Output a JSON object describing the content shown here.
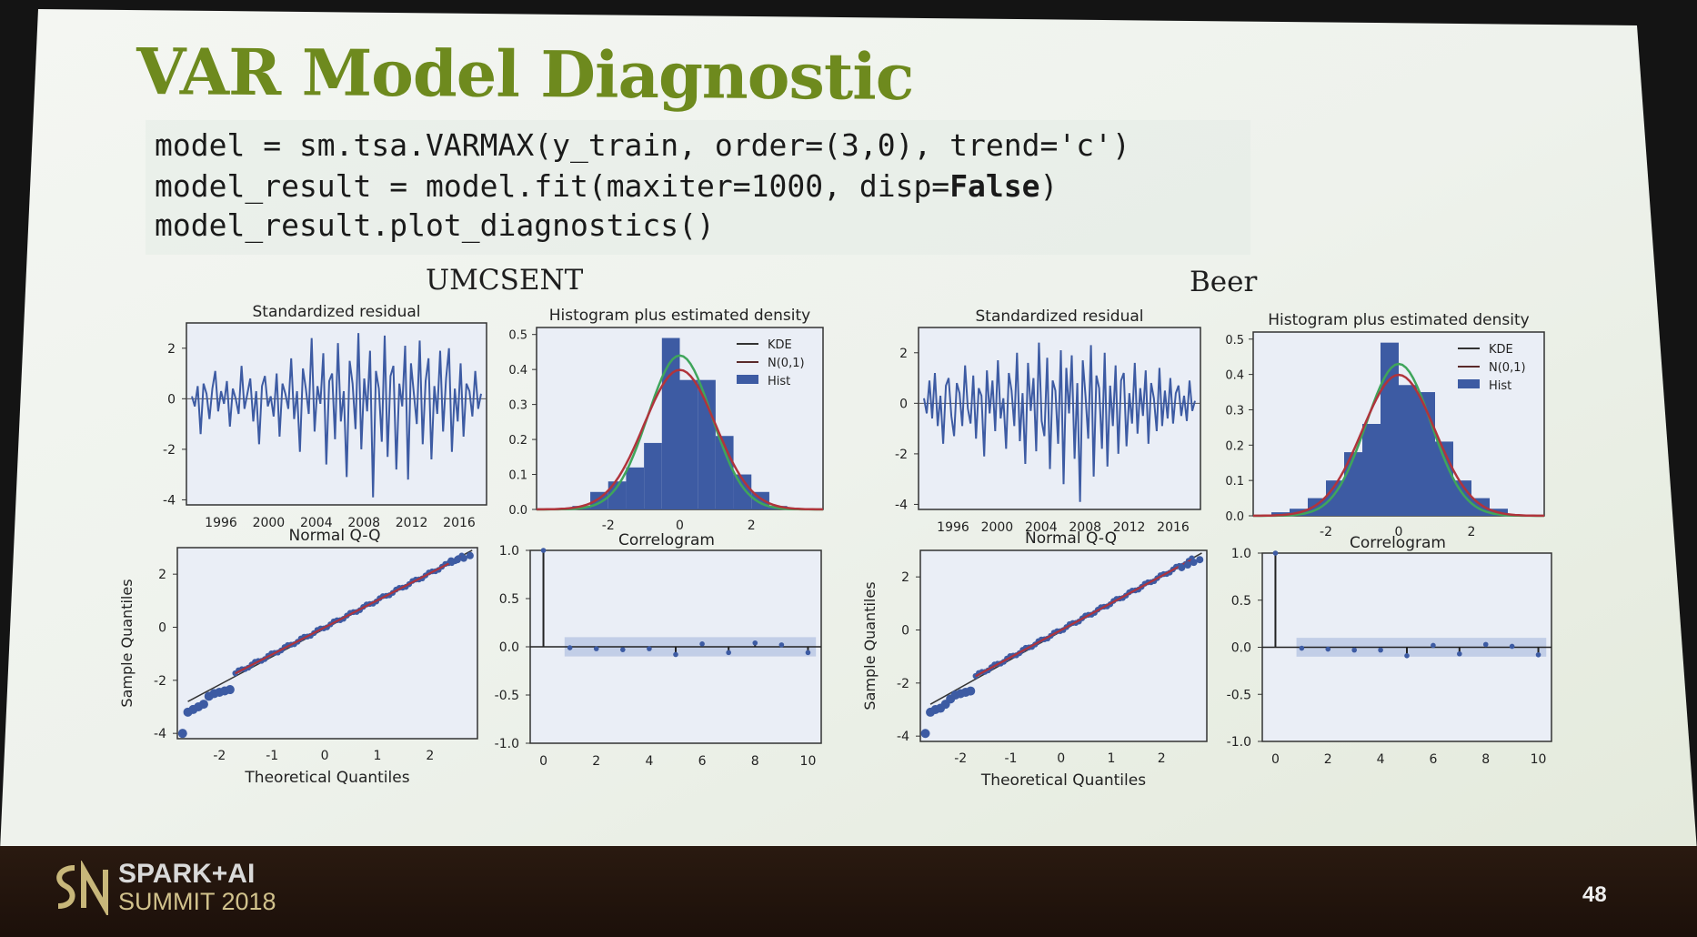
{
  "slide": {
    "title": "VAR Model Diagnostic",
    "code": {
      "line1": "model = sm.tsa.VARMAX(y_train, order=(3,0), trend='c')",
      "line2_prefix": "model_result = model.fit(maxiter=1000, disp=",
      "line2_bold": "False",
      "line2_suffix": ")",
      "line3": "model_result.plot_diagnostics()"
    },
    "page_number": "48",
    "logo": {
      "line1": "SPARK+AI",
      "line2": "SUMMIT 2018"
    }
  },
  "colors": {
    "title": "#6e8a1e",
    "series_blue": "#3d5ba3",
    "kde_green": "#3fa55b",
    "normal_red": "#b0343c",
    "ci_band": "#b8c6e4"
  },
  "panels": [
    {
      "label": "UMCSENT"
    },
    {
      "label": "Beer"
    }
  ],
  "chart_data": [
    {
      "panel": "UMCSENT",
      "type": "line",
      "title": "Standardized residual",
      "x_ticks": [
        "1996",
        "2000",
        "2004",
        "2008",
        "2012",
        "2016"
      ],
      "y_ticks": [
        "2",
        "0",
        "-2",
        "-4"
      ],
      "ylim": [
        -4.2,
        3
      ],
      "values": [
        0.1,
        -0.3,
        0.5,
        -1.4,
        0.6,
        0.2,
        -0.8,
        0.4,
        1.1,
        -0.5,
        0.3,
        -0.2,
        0.7,
        -1.1,
        0.4,
        0.0,
        -0.6,
        1.3,
        -0.4,
        0.2,
        0.8,
        -0.9,
        0.3,
        -1.8,
        0.5,
        0.9,
        -0.3,
        0.1,
        -0.7,
        1.0,
        -1.5,
        0.6,
        0.2,
        -0.4,
        1.6,
        -0.8,
        0.3,
        -2.1,
        1.2,
        0.4,
        -0.6,
        2.4,
        -1.3,
        0.5,
        -0.2,
        1.8,
        -2.6,
        0.7,
        1.0,
        -1.6,
        2.2,
        -0.9,
        0.3,
        -3.1,
        1.5,
        0.6,
        -1.2,
        2.6,
        -2.0,
        0.8,
        -0.5,
        1.9,
        -3.9,
        1.1,
        0.4,
        -1.7,
        2.5,
        -2.3,
        0.9,
        1.3,
        -2.8,
        0.6,
        -0.3,
        2.1,
        -3.2,
        1.4,
        0.2,
        -1.0,
        2.3,
        -1.8,
        0.7,
        1.6,
        -2.4,
        0.5,
        -0.6,
        1.9,
        -1.3,
        0.8,
        2.0,
        -2.1,
        0.4,
        -0.9,
        1.4,
        -1.5,
        0.6,
        0.3,
        -0.7,
        1.1,
        -0.4,
        0.2
      ]
    },
    {
      "panel": "UMCSENT",
      "type": "bar",
      "title": "Histogram plus estimated density",
      "x_ticks": [
        "-2",
        "0",
        "2"
      ],
      "y_ticks": [
        "0.5",
        "0.4",
        "0.3",
        "0.2",
        "0.1",
        "0.0"
      ],
      "xlim": [
        -4,
        4
      ],
      "ylim": [
        0,
        0.52
      ],
      "hist": [
        {
          "x0": -3.0,
          "x1": -2.5,
          "y": 0.01
        },
        {
          "x0": -2.5,
          "x1": -2.0,
          "y": 0.05
        },
        {
          "x0": -2.0,
          "x1": -1.5,
          "y": 0.08
        },
        {
          "x0": -1.5,
          "x1": -1.0,
          "y": 0.12
        },
        {
          "x0": -1.0,
          "x1": -0.5,
          "y": 0.19
        },
        {
          "x0": -0.5,
          "x1": 0.0,
          "y": 0.49
        },
        {
          "x0": 0.0,
          "x1": 0.5,
          "y": 0.37
        },
        {
          "x0": 0.5,
          "x1": 1.0,
          "y": 0.37
        },
        {
          "x0": 1.0,
          "x1": 1.5,
          "y": 0.21
        },
        {
          "x0": 1.5,
          "x1": 2.0,
          "y": 0.1
        },
        {
          "x0": 2.0,
          "x1": 2.5,
          "y": 0.05
        },
        {
          "x0": 2.5,
          "x1": 3.0,
          "y": 0.01
        }
      ],
      "kde_peak": 0.44,
      "legend": [
        "KDE",
        "N(0,1)",
        "Hist"
      ],
      "legend_position": "top-right"
    },
    {
      "panel": "UMCSENT",
      "type": "scatter",
      "title": "Normal Q-Q",
      "xlabel": "Theoretical Quantiles",
      "ylabel": "Sample Quantiles",
      "x_ticks": [
        "-2",
        "-1",
        "0",
        "1",
        "2"
      ],
      "y_ticks": [
        "2",
        "0",
        "-2",
        "-4"
      ],
      "xlim": [
        -2.8,
        2.9
      ],
      "ylim": [
        -4.2,
        3.0
      ],
      "low_tail_y": [
        -4.0,
        -3.2,
        -3.1,
        -3.0,
        -2.9,
        -2.6,
        -2.5,
        -2.45,
        -2.4,
        -2.35
      ],
      "high_tail_y": [
        2.5,
        2.55,
        2.6,
        2.7
      ]
    },
    {
      "panel": "UMCSENT",
      "type": "bar",
      "title": "Correlogram",
      "x_ticks": [
        "0",
        "2",
        "4",
        "6",
        "8",
        "10"
      ],
      "y_ticks": [
        "1.0",
        "0.5",
        "0.0",
        "-0.5",
        "-1.0"
      ],
      "xlim": [
        -0.5,
        10.5
      ],
      "ylim": [
        -1,
        1
      ],
      "values": [
        1.0,
        -0.01,
        -0.02,
        -0.03,
        -0.02,
        -0.08,
        0.03,
        -0.06,
        0.04,
        0.02,
        -0.06
      ],
      "ci": 0.1
    },
    {
      "panel": "Beer",
      "type": "line",
      "title": "Standardized residual",
      "x_ticks": [
        "1996",
        "2000",
        "2004",
        "2008",
        "2012",
        "2016"
      ],
      "y_ticks": [
        "2",
        "0",
        "-2",
        "-4"
      ],
      "ylim": [
        -4.2,
        3
      ],
      "values": [
        0.2,
        -0.4,
        0.9,
        -0.6,
        1.2,
        -0.9,
        0.3,
        -1.6,
        0.7,
        1.0,
        -0.5,
        -1.3,
        0.8,
        0.4,
        -0.9,
        1.5,
        -0.2,
        -0.8,
        1.1,
        -1.4,
        0.6,
        0.3,
        -2.1,
        1.3,
        -0.4,
        0.9,
        -1.1,
        1.7,
        -0.6,
        0.2,
        -1.8,
        1.2,
        0.5,
        -0.9,
        2.0,
        -1.5,
        0.4,
        -2.4,
        1.6,
        -0.3,
        1.0,
        -1.9,
        2.4,
        -0.7,
        -1.3,
        1.8,
        -2.6,
        0.9,
        0.5,
        -1.6,
        2.1,
        -3.2,
        1.4,
        -0.4,
        1.9,
        -2.2,
        0.8,
        -3.9,
        1.7,
        0.3,
        -1.4,
        2.3,
        -2.9,
        1.1,
        0.6,
        -1.8,
        2.0,
        -2.5,
        0.7,
        -0.9,
        1.5,
        -2.0,
        0.9,
        1.2,
        -1.7,
        0.4,
        -0.8,
        1.6,
        -1.2,
        0.6,
        -0.5,
        1.3,
        -1.6,
        0.8,
        0.2,
        -1.1,
        1.4,
        -0.9,
        0.5,
        -0.6,
        1.0,
        -0.8,
        0.4,
        0.7,
        -0.5,
        0.3,
        -0.7,
        0.9,
        -0.3,
        0.1
      ]
    },
    {
      "panel": "Beer",
      "type": "bar",
      "title": "Histogram plus estimated density",
      "x_ticks": [
        "-2",
        "0",
        "2"
      ],
      "y_ticks": [
        "0.5",
        "0.4",
        "0.3",
        "0.2",
        "0.1",
        "0.0"
      ],
      "xlim": [
        -4,
        4
      ],
      "ylim": [
        0,
        0.52
      ],
      "hist": [
        {
          "x0": -3.5,
          "x1": -3.0,
          "y": 0.01
        },
        {
          "x0": -3.0,
          "x1": -2.5,
          "y": 0.02
        },
        {
          "x0": -2.5,
          "x1": -2.0,
          "y": 0.05
        },
        {
          "x0": -2.0,
          "x1": -1.5,
          "y": 0.1
        },
        {
          "x0": -1.5,
          "x1": -1.0,
          "y": 0.18
        },
        {
          "x0": -1.0,
          "x1": -0.5,
          "y": 0.26
        },
        {
          "x0": -0.5,
          "x1": 0.0,
          "y": 0.49
        },
        {
          "x0": 0.0,
          "x1": 0.5,
          "y": 0.37
        },
        {
          "x0": 0.5,
          "x1": 1.0,
          "y": 0.35
        },
        {
          "x0": 1.0,
          "x1": 1.5,
          "y": 0.21
        },
        {
          "x0": 1.5,
          "x1": 2.0,
          "y": 0.1
        },
        {
          "x0": 2.0,
          "x1": 2.5,
          "y": 0.05
        },
        {
          "x0": 2.5,
          "x1": 3.0,
          "y": 0.02
        }
      ],
      "kde_peak": 0.43,
      "legend": [
        "KDE",
        "N(0,1)",
        "Hist"
      ],
      "legend_position": "top-right"
    },
    {
      "panel": "Beer",
      "type": "scatter",
      "title": "Normal Q-Q",
      "xlabel": "Theoretical Quantiles",
      "ylabel": "Sample Quantiles",
      "x_ticks": [
        "-2",
        "-1",
        "0",
        "1",
        "2"
      ],
      "y_ticks": [
        "2",
        "0",
        "-2",
        "-4"
      ],
      "xlim": [
        -2.8,
        2.9
      ],
      "ylim": [
        -4.2,
        3.0
      ],
      "low_tail_y": [
        -3.9,
        -3.1,
        -3.0,
        -2.95,
        -2.8,
        -2.6,
        -2.45,
        -2.4,
        -2.35,
        -2.3
      ],
      "high_tail_y": [
        2.35,
        2.45,
        2.55,
        2.65
      ]
    },
    {
      "panel": "Beer",
      "type": "bar",
      "title": "Correlogram",
      "x_ticks": [
        "0",
        "2",
        "4",
        "6",
        "8",
        "10"
      ],
      "y_ticks": [
        "1.0",
        "0.5",
        "0.0",
        "-0.5",
        "-1.0"
      ],
      "xlim": [
        -0.5,
        10.5
      ],
      "ylim": [
        -1,
        1
      ],
      "values": [
        1.0,
        -0.01,
        -0.02,
        -0.03,
        -0.03,
        -0.09,
        0.02,
        -0.07,
        0.03,
        0.01,
        -0.08
      ],
      "ci": 0.1
    }
  ]
}
